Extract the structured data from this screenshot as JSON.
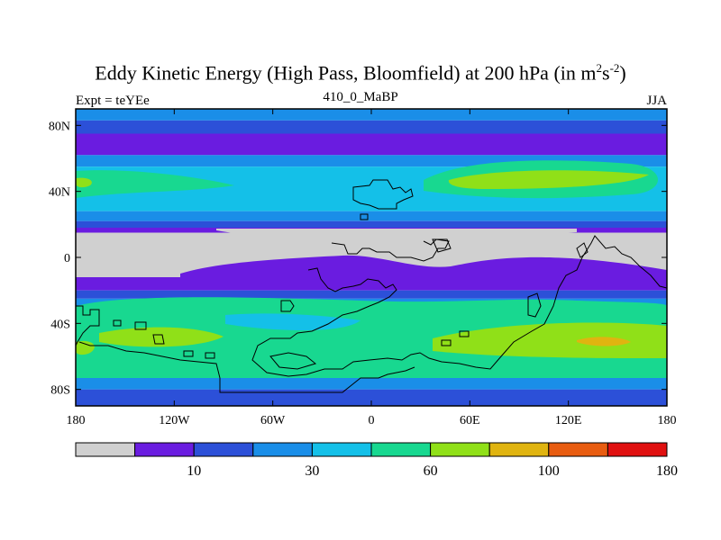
{
  "title": {
    "main": "Eddy Kinetic Energy (High Pass, Bloomfield) at 200 hPa (in m",
    "sup1": "2",
    "mid": "s",
    "sup2": "-2",
    "close": ")"
  },
  "subtitle": {
    "left": "Expt = teYEe",
    "center": "410_0_MaBP",
    "right": "JJA"
  },
  "map_data": {
    "lat_tick_labels": [
      "80N",
      "40N",
      "0",
      "40S",
      "80S"
    ],
    "lat_tick_values": [
      80,
      40,
      0,
      -40,
      -80
    ],
    "lon_tick_labels": [
      "180",
      "120W",
      "60W",
      "0",
      "60E",
      "120E",
      "180"
    ],
    "lon_tick_values": [
      -180,
      -120,
      -60,
      0,
      60,
      120,
      180
    ],
    "colorbar": {
      "levels": [
        10,
        30,
        60,
        100,
        180
      ],
      "label_slots": [
        1,
        3,
        5,
        7,
        9
      ],
      "colors": [
        "#d0d0d0",
        "#6a1ce0",
        "#2c50d8",
        "#1a8ee8",
        "#14c0e8",
        "#18d890",
        "#90e018",
        "#e0b410",
        "#e85c10",
        "#e01010"
      ]
    },
    "bands": [
      {
        "lat_top": 90,
        "lat_bottom": 83,
        "color_index": 3
      },
      {
        "lat_top": 83,
        "lat_bottom": 75,
        "color_index": 2
      },
      {
        "lat_top": 75,
        "lat_bottom": 62,
        "color_index": 1
      },
      {
        "lat_top": 62,
        "lat_bottom": 55,
        "color_index": 3
      },
      {
        "lat_top": 55,
        "lat_bottom": 28,
        "color_index": 4
      },
      {
        "lat_top": 28,
        "lat_bottom": 22,
        "color_index": 3
      },
      {
        "lat_top": 22,
        "lat_bottom": 18,
        "color_index": 2
      },
      {
        "lat_top": 18,
        "lat_bottom": 15,
        "color_index": 1
      },
      {
        "lat_top": 15,
        "lat_bottom": -12,
        "color_index": 0
      },
      {
        "lat_top": -12,
        "lat_bottom": -20,
        "color_index": 1
      },
      {
        "lat_top": -20,
        "lat_bottom": -25,
        "color_index": 2
      },
      {
        "lat_top": -25,
        "lat_bottom": -32,
        "color_index": 3
      },
      {
        "lat_top": -32,
        "lat_bottom": -72,
        "color_index": 4
      },
      {
        "lat_top": -72,
        "lat_bottom": -80,
        "color_index": 3
      },
      {
        "lat_top": -80,
        "lat_bottom": -90,
        "color_index": 2
      }
    ]
  }
}
